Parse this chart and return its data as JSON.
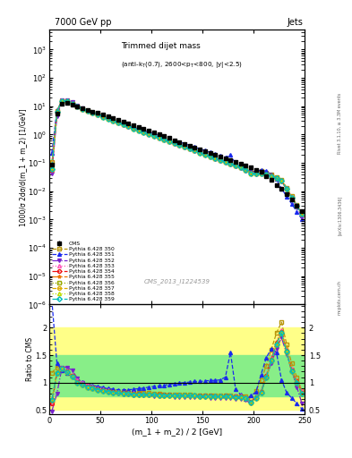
{
  "title_left": "7000 GeV pp",
  "title_right": "Jets",
  "xlabel": "(m_1 + m_2) / 2 [GeV]",
  "ylabel_main": "1000/σ 2dσ/d(m_1 + m_2) [1/GeV]",
  "ylabel_ratio": "Ratio to CMS",
  "watermark": "CMS_2013_I1224539",
  "rivet_text": "Rivet 3.1.10, ≥ 3.3M events",
  "arxiv_text": "[arXiv:1306.3436]",
  "mcplots_text": "mcplots.cern.ch",
  "xlim": [
    0,
    250
  ],
  "ylim_main_log": [
    -6,
    3.7
  ],
  "ylim_ratio": [
    0.42,
    2.42
  ],
  "x_data": [
    2.5,
    7.5,
    12.5,
    17.5,
    22.5,
    27.5,
    32.5,
    37.5,
    42.5,
    47.5,
    52.5,
    57.5,
    62.5,
    67.5,
    72.5,
    77.5,
    82.5,
    87.5,
    92.5,
    97.5,
    102.5,
    107.5,
    112.5,
    117.5,
    122.5,
    127.5,
    132.5,
    137.5,
    142.5,
    147.5,
    152.5,
    157.5,
    162.5,
    167.5,
    172.5,
    177.5,
    182.5,
    187.5,
    192.5,
    197.5,
    202.5,
    207.5,
    212.5,
    217.5,
    222.5,
    227.5,
    232.5,
    237.5,
    242.5,
    247.5
  ],
  "cms_y": [
    0.09,
    5.5,
    12.5,
    12.8,
    11.2,
    9.6,
    8.4,
    7.4,
    6.6,
    5.8,
    5.0,
    4.35,
    3.75,
    3.25,
    2.8,
    2.42,
    2.08,
    1.8,
    1.56,
    1.35,
    1.16,
    1.0,
    0.87,
    0.75,
    0.64,
    0.55,
    0.48,
    0.41,
    0.355,
    0.305,
    0.263,
    0.226,
    0.194,
    0.167,
    0.144,
    0.124,
    0.107,
    0.092,
    0.079,
    0.068,
    0.058,
    0.05,
    0.035,
    0.025,
    0.017,
    0.012,
    0.008,
    0.005,
    0.003,
    0.002
  ],
  "cms_yerr_rel": 0.05,
  "mc_labels": [
    "Pythia 6.428 350",
    "Pythia 6.428 351",
    "Pythia 6.428 352",
    "Pythia 6.428 353",
    "Pythia 6.428 354",
    "Pythia 6.428 355",
    "Pythia 6.428 356",
    "Pythia 6.428 357",
    "Pythia 6.428 358",
    "Pythia 6.428 359"
  ],
  "mc_colors": [
    "#b8960a",
    "#1a2aee",
    "#7722cc",
    "#ff55bb",
    "#ee1111",
    "#ee7700",
    "#99aa00",
    "#ddaa00",
    "#bbdd00",
    "#00bbbb"
  ],
  "mc_markers": [
    "s",
    "^",
    "v",
    "^",
    "o",
    "*",
    "s",
    "o",
    "^",
    "D"
  ],
  "mc_marker_filled": [
    false,
    true,
    true,
    false,
    false,
    true,
    false,
    false,
    false,
    false
  ],
  "mc_linestyles": [
    "--",
    "--",
    "-.",
    ":",
    "-.",
    "-.",
    ":",
    "--",
    ":",
    "-."
  ],
  "band_yellow": [
    0.5,
    2.0
  ],
  "band_green": [
    0.75,
    1.5
  ],
  "ratio_y_350": [
    1.18,
    1.28,
    1.22,
    1.18,
    1.13,
    1.02,
    0.96,
    0.91,
    0.89,
    0.88,
    0.87,
    0.86,
    0.85,
    0.84,
    0.83,
    0.83,
    0.82,
    0.82,
    0.81,
    0.81,
    0.8,
    0.8,
    0.79,
    0.79,
    0.79,
    0.78,
    0.78,
    0.78,
    0.77,
    0.77,
    0.77,
    0.76,
    0.76,
    0.76,
    0.76,
    0.76,
    0.75,
    0.75,
    0.75,
    0.72,
    0.85,
    1.05,
    1.3,
    1.6,
    1.9,
    2.1,
    1.7,
    1.35,
    1.1,
    0.85
  ],
  "ratio_y_351": [
    2.5,
    1.35,
    1.22,
    1.18,
    1.12,
    1.06,
    1.01,
    0.97,
    0.95,
    0.93,
    0.91,
    0.89,
    0.88,
    0.87,
    0.87,
    0.87,
    0.88,
    0.89,
    0.9,
    0.92,
    0.93,
    0.94,
    0.95,
    0.97,
    0.98,
    0.99,
    1.0,
    1.01,
    1.02,
    1.02,
    1.03,
    1.04,
    1.04,
    1.05,
    1.1,
    1.55,
    0.88,
    0.78,
    0.7,
    0.76,
    0.83,
    1.15,
    1.45,
    1.62,
    1.55,
    1.05,
    0.82,
    0.72,
    0.62,
    0.52
  ],
  "ratio_y_352": [
    0.48,
    0.8,
    1.28,
    1.28,
    1.22,
    1.08,
    0.99,
    0.94,
    0.9,
    0.87,
    0.85,
    0.83,
    0.81,
    0.8,
    0.79,
    0.78,
    0.77,
    0.77,
    0.76,
    0.76,
    0.75,
    0.75,
    0.75,
    0.75,
    0.74,
    0.74,
    0.74,
    0.73,
    0.73,
    0.73,
    0.73,
    0.72,
    0.72,
    0.72,
    0.72,
    0.72,
    0.71,
    0.71,
    0.68,
    0.62,
    0.7,
    0.82,
    1.1,
    1.35,
    1.62,
    1.82,
    1.52,
    1.22,
    0.92,
    0.62
  ],
  "ratio_y_353": [
    0.62,
    1.18,
    1.28,
    1.22,
    1.15,
    1.05,
    1.0,
    0.96,
    0.93,
    0.9,
    0.88,
    0.86,
    0.84,
    0.83,
    0.82,
    0.81,
    0.81,
    0.8,
    0.8,
    0.79,
    0.79,
    0.79,
    0.79,
    0.78,
    0.78,
    0.78,
    0.77,
    0.77,
    0.77,
    0.77,
    0.77,
    0.76,
    0.76,
    0.76,
    0.77,
    0.76,
    0.76,
    0.76,
    0.73,
    0.66,
    0.74,
    0.85,
    1.15,
    1.45,
    1.75,
    1.95,
    1.6,
    1.25,
    1.05,
    0.85
  ],
  "ratio_y_354": [
    0.62,
    1.18,
    1.26,
    1.2,
    1.12,
    1.01,
    0.97,
    0.93,
    0.91,
    0.88,
    0.86,
    0.85,
    0.83,
    0.82,
    0.81,
    0.81,
    0.8,
    0.8,
    0.79,
    0.79,
    0.78,
    0.78,
    0.78,
    0.78,
    0.77,
    0.77,
    0.77,
    0.76,
    0.76,
    0.76,
    0.76,
    0.76,
    0.75,
    0.75,
    0.76,
    0.75,
    0.75,
    0.75,
    0.72,
    0.65,
    0.73,
    0.83,
    1.12,
    1.42,
    1.72,
    1.92,
    1.58,
    1.22,
    1.02,
    0.82
  ],
  "ratio_y_355": [
    0.68,
    1.18,
    1.26,
    1.2,
    1.12,
    1.01,
    0.97,
    0.93,
    0.91,
    0.88,
    0.86,
    0.85,
    0.83,
    0.82,
    0.81,
    0.81,
    0.8,
    0.8,
    0.79,
    0.79,
    0.78,
    0.78,
    0.78,
    0.78,
    0.77,
    0.77,
    0.77,
    0.76,
    0.76,
    0.76,
    0.76,
    0.76,
    0.75,
    0.75,
    0.76,
    0.75,
    0.75,
    0.75,
    0.72,
    0.65,
    0.73,
    0.83,
    1.12,
    1.42,
    1.72,
    1.92,
    1.58,
    1.22,
    1.02,
    0.82
  ],
  "ratio_y_356": [
    0.68,
    1.18,
    1.25,
    1.19,
    1.11,
    1.0,
    0.96,
    0.92,
    0.9,
    0.87,
    0.85,
    0.84,
    0.82,
    0.81,
    0.8,
    0.8,
    0.79,
    0.79,
    0.78,
    0.78,
    0.78,
    0.77,
    0.77,
    0.77,
    0.77,
    0.76,
    0.76,
    0.76,
    0.76,
    0.75,
    0.75,
    0.75,
    0.75,
    0.75,
    0.75,
    0.75,
    0.74,
    0.74,
    0.72,
    0.64,
    0.72,
    0.82,
    1.1,
    1.4,
    1.7,
    1.9,
    1.56,
    1.2,
    1.0,
    0.8
  ],
  "ratio_y_357": [
    0.68,
    1.18,
    1.25,
    1.19,
    1.11,
    1.0,
    0.96,
    0.92,
    0.9,
    0.87,
    0.85,
    0.84,
    0.82,
    0.81,
    0.8,
    0.8,
    0.79,
    0.79,
    0.78,
    0.78,
    0.78,
    0.77,
    0.77,
    0.77,
    0.77,
    0.76,
    0.76,
    0.76,
    0.76,
    0.75,
    0.75,
    0.75,
    0.75,
    0.75,
    0.75,
    0.75,
    0.74,
    0.74,
    0.72,
    0.64,
    0.72,
    0.82,
    1.1,
    1.4,
    1.7,
    1.9,
    1.56,
    1.2,
    1.0,
    0.8
  ],
  "ratio_y_358": [
    0.68,
    1.18,
    1.25,
    1.19,
    1.11,
    1.0,
    0.96,
    0.92,
    0.9,
    0.87,
    0.85,
    0.84,
    0.82,
    0.81,
    0.8,
    0.8,
    0.79,
    0.79,
    0.78,
    0.78,
    0.78,
    0.77,
    0.77,
    0.77,
    0.77,
    0.76,
    0.76,
    0.76,
    0.76,
    0.75,
    0.75,
    0.75,
    0.75,
    0.75,
    0.75,
    0.75,
    0.74,
    0.74,
    0.72,
    0.64,
    0.72,
    0.82,
    1.1,
    1.4,
    1.7,
    1.9,
    1.56,
    1.2,
    1.0,
    0.8
  ],
  "ratio_y_359": [
    0.68,
    1.18,
    1.25,
    1.19,
    1.11,
    1.0,
    0.96,
    0.92,
    0.9,
    0.87,
    0.85,
    0.84,
    0.82,
    0.81,
    0.8,
    0.8,
    0.79,
    0.79,
    0.78,
    0.78,
    0.78,
    0.77,
    0.77,
    0.77,
    0.77,
    0.76,
    0.76,
    0.76,
    0.76,
    0.75,
    0.75,
    0.75,
    0.75,
    0.75,
    0.75,
    0.75,
    0.74,
    0.74,
    0.72,
    0.64,
    0.72,
    0.82,
    1.1,
    1.4,
    1.7,
    1.9,
    1.56,
    1.2,
    1.0,
    0.8
  ]
}
